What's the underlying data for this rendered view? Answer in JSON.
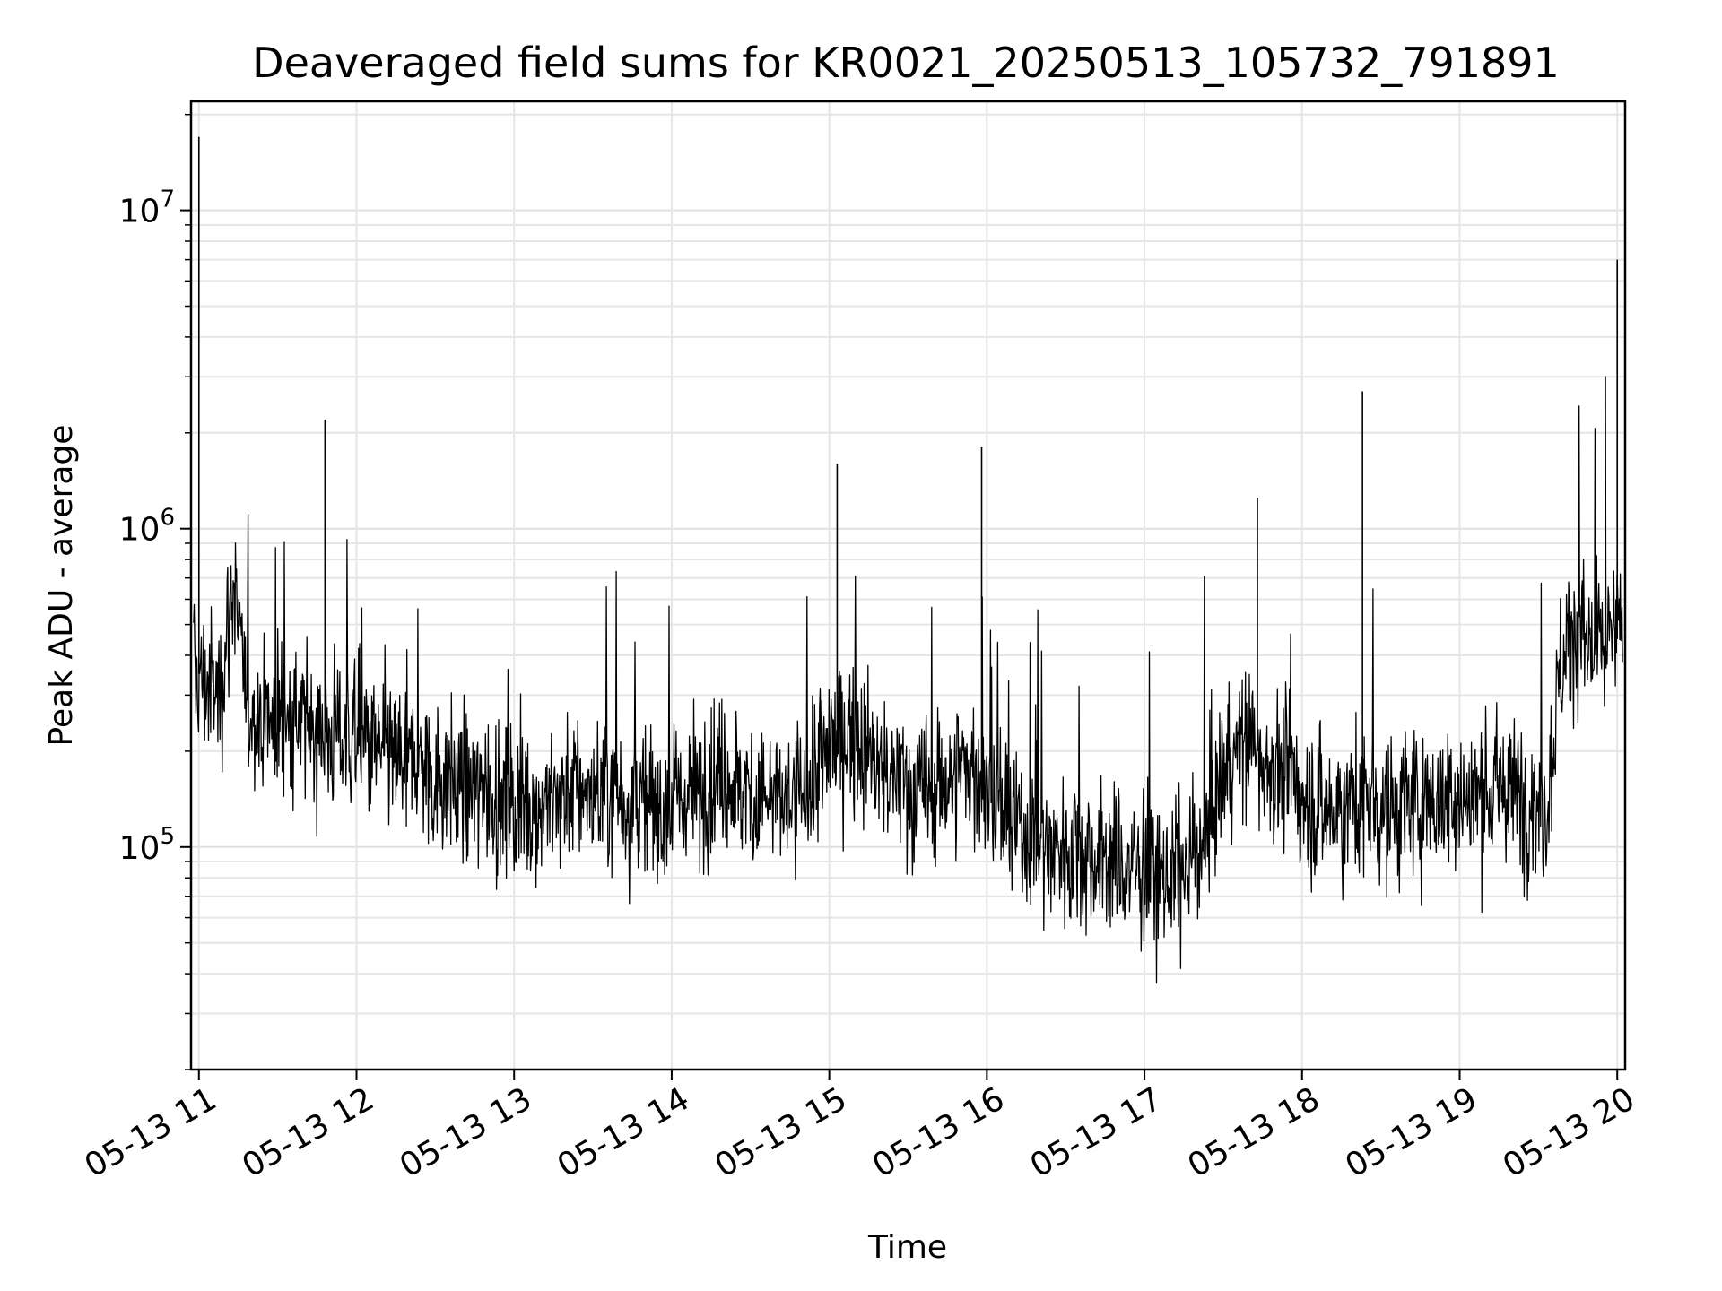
{
  "chart_data": {
    "type": "line",
    "title": "Deaveraged field sums for KR0021_20250513_105732_791891",
    "xlabel": "Time",
    "ylabel": "Peak ADU - average",
    "xlim": [
      "2025-05-13 10:57",
      "2025-05-13 20:03"
    ],
    "ylim": [
      20000,
      22000000
    ],
    "yscale": "log",
    "grid": true,
    "line_color": "#000000",
    "x_ticks": [
      {
        "value": "2025-05-13 11:00",
        "label": "05-13 11"
      },
      {
        "value": "2025-05-13 12:00",
        "label": "05-13 12"
      },
      {
        "value": "2025-05-13 13:00",
        "label": "05-13 13"
      },
      {
        "value": "2025-05-13 14:00",
        "label": "05-13 14"
      },
      {
        "value": "2025-05-13 15:00",
        "label": "05-13 15"
      },
      {
        "value": "2025-05-13 16:00",
        "label": "05-13 16"
      },
      {
        "value": "2025-05-13 17:00",
        "label": "05-13 17"
      },
      {
        "value": "2025-05-13 18:00",
        "label": "05-13 18"
      },
      {
        "value": "2025-05-13 19:00",
        "label": "05-13 19"
      },
      {
        "value": "2025-05-13 20:00",
        "label": "05-13 20"
      }
    ],
    "y_ticks": [
      {
        "value": 100000,
        "base": "10",
        "exp": "5"
      },
      {
        "value": 1000000,
        "base": "10",
        "exp": "6"
      },
      {
        "value": 10000000,
        "base": "10",
        "exp": "7"
      }
    ],
    "series": [
      {
        "x": [
          "2025-05-13 10:58",
          "2025-05-13 11:03",
          "2025-05-13 11:08",
          "2025-05-13 11:13",
          "2025-05-13 11:18",
          "2025-05-13 11:23",
          "2025-05-13 11:28",
          "2025-05-13 11:33",
          "2025-05-13 11:38",
          "2025-05-13 11:43",
          "2025-05-13 11:48",
          "2025-05-13 11:53",
          "2025-05-13 11:58",
          "2025-05-13 12:03",
          "2025-05-13 12:08",
          "2025-05-13 12:13",
          "2025-05-13 12:18",
          "2025-05-13 12:23",
          "2025-05-13 12:28",
          "2025-05-13 12:33",
          "2025-05-13 12:38",
          "2025-05-13 12:43",
          "2025-05-13 12:48",
          "2025-05-13 12:53",
          "2025-05-13 12:58",
          "2025-05-13 13:03",
          "2025-05-13 13:08",
          "2025-05-13 13:13",
          "2025-05-13 13:18",
          "2025-05-13 13:23",
          "2025-05-13 13:28",
          "2025-05-13 13:33",
          "2025-05-13 13:38",
          "2025-05-13 13:43",
          "2025-05-13 13:48",
          "2025-05-13 13:53",
          "2025-05-13 13:58",
          "2025-05-13 14:03",
          "2025-05-13 14:08",
          "2025-05-13 14:13",
          "2025-05-13 14:18",
          "2025-05-13 14:23",
          "2025-05-13 14:28",
          "2025-05-13 14:33",
          "2025-05-13 14:38",
          "2025-05-13 14:43",
          "2025-05-13 14:48",
          "2025-05-13 14:53",
          "2025-05-13 14:58",
          "2025-05-13 15:03",
          "2025-05-13 15:08",
          "2025-05-13 15:13",
          "2025-05-13 15:18",
          "2025-05-13 15:23",
          "2025-05-13 15:28",
          "2025-05-13 15:33",
          "2025-05-13 15:38",
          "2025-05-13 15:43",
          "2025-05-13 15:48",
          "2025-05-13 15:53",
          "2025-05-13 15:58",
          "2025-05-13 16:03",
          "2025-05-13 16:08",
          "2025-05-13 16:13",
          "2025-05-13 16:18",
          "2025-05-13 16:23",
          "2025-05-13 16:28",
          "2025-05-13 16:33",
          "2025-05-13 16:38",
          "2025-05-13 16:43",
          "2025-05-13 16:48",
          "2025-05-13 16:53",
          "2025-05-13 16:58",
          "2025-05-13 17:03",
          "2025-05-13 17:08",
          "2025-05-13 17:13",
          "2025-05-13 17:18",
          "2025-05-13 17:23",
          "2025-05-13 17:28",
          "2025-05-13 17:33",
          "2025-05-13 17:38",
          "2025-05-13 17:43",
          "2025-05-13 17:48",
          "2025-05-13 17:53",
          "2025-05-13 17:58",
          "2025-05-13 18:03",
          "2025-05-13 18:08",
          "2025-05-13 18:13",
          "2025-05-13 18:18",
          "2025-05-13 18:23",
          "2025-05-13 18:28",
          "2025-05-13 18:33",
          "2025-05-13 18:38",
          "2025-05-13 18:43",
          "2025-05-13 18:48",
          "2025-05-13 18:53",
          "2025-05-13 18:58",
          "2025-05-13 19:03",
          "2025-05-13 19:08",
          "2025-05-13 19:13",
          "2025-05-13 19:18",
          "2025-05-13 19:23",
          "2025-05-13 19:28",
          "2025-05-13 19:33",
          "2025-05-13 19:38",
          "2025-05-13 19:43",
          "2025-05-13 19:48",
          "2025-05-13 19:53",
          "2025-05-13 19:58",
          "2025-05-13 20:02"
        ],
        "y": [
          350000,
          320000,
          300000,
          700000,
          280000,
          260000,
          250000,
          260000,
          240000,
          250000,
          230000,
          230000,
          220000,
          210000,
          200000,
          190000,
          190000,
          180000,
          170000,
          165000,
          160000,
          150000,
          150000,
          145000,
          140000,
          140000,
          135000,
          140000,
          145000,
          150000,
          150000,
          145000,
          150000,
          140000,
          140000,
          130000,
          135000,
          140000,
          150000,
          160000,
          170000,
          160000,
          150000,
          140000,
          140000,
          135000,
          140000,
          160000,
          190000,
          220000,
          230000,
          210000,
          180000,
          160000,
          160000,
          150000,
          150000,
          160000,
          170000,
          180000,
          160000,
          140000,
          120000,
          110000,
          110000,
          100000,
          100000,
          100000,
          95000,
          90000,
          90000,
          85000,
          85000,
          85000,
          80000,
          80000,
          90000,
          110000,
          150000,
          200000,
          210000,
          200000,
          180000,
          170000,
          150000,
          140000,
          130000,
          130000,
          140000,
          140000,
          135000,
          130000,
          130000,
          140000,
          140000,
          140000,
          145000,
          140000,
          150000,
          150000,
          150000,
          145000,
          140000,
          130000,
          350000,
          500000,
          450000,
          400000,
          450000,
          500000
        ]
      }
    ],
    "spikes": [
      {
        "x": "2025-05-13 11:00",
        "y": 17000000
      },
      {
        "x": "2025-05-13 11:48",
        "y": 2200000
      },
      {
        "x": "2025-05-13 15:03",
        "y": 1600000
      },
      {
        "x": "2025-05-13 15:58",
        "y": 1800000
      },
      {
        "x": "2025-05-13 17:43",
        "y": 1250000
      },
      {
        "x": "2025-05-13 18:23",
        "y": 2700000
      },
      {
        "x": "2025-05-13 20:00",
        "y": 7000000
      }
    ]
  }
}
